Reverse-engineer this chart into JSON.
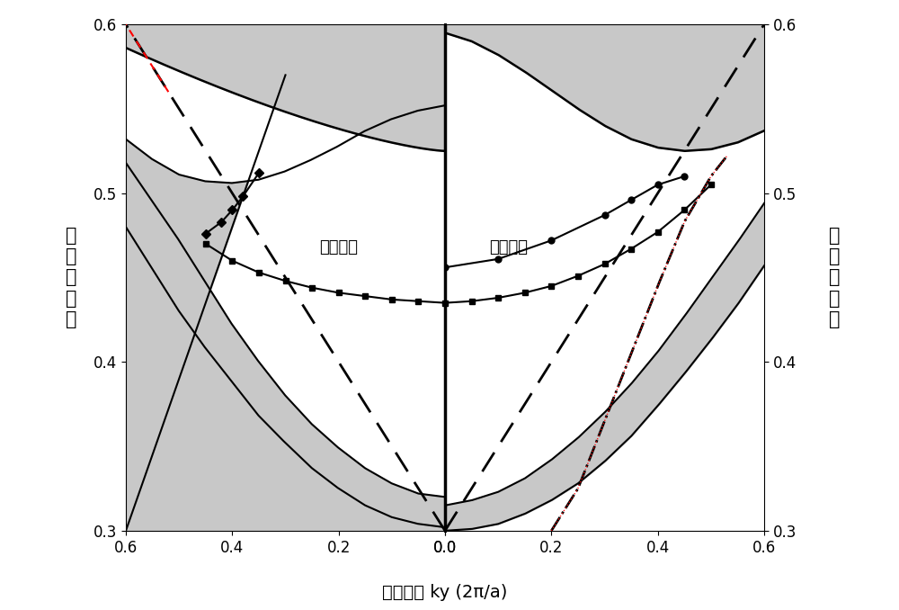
{
  "ylim": [
    0.3,
    0.6
  ],
  "gray_color": "#c8c8c8",
  "background_color": "#ffffff",
  "ylabel_left": "归\n一\n化\n频\n率",
  "ylabel_right": "归\n一\n化\n频\n率",
  "xlabel_cn": "平行波矢",
  "xlabel_en": " ky (2π/a)",
  "label_TM": "横向磁场",
  "label_TE": "横向电场",
  "TM_upper_band_at_k0": 0.525,
  "TM_upper_band_slope": 0.115,
  "TM_upper_band_exp": 1.6,
  "TM_lower_outer_k": [
    0.0,
    0.05,
    0.1,
    0.15,
    0.2,
    0.25,
    0.3,
    0.35,
    0.4,
    0.45,
    0.5,
    0.55,
    0.6
  ],
  "TM_lower_outer_f": [
    0.302,
    0.304,
    0.308,
    0.315,
    0.325,
    0.337,
    0.352,
    0.368,
    0.388,
    0.408,
    0.43,
    0.455,
    0.48
  ],
  "TM_inner_upper_k": [
    0.0,
    0.05,
    0.1,
    0.15,
    0.2,
    0.25,
    0.3,
    0.35,
    0.4,
    0.45,
    0.5,
    0.55,
    0.6
  ],
  "TM_inner_upper_f": [
    0.552,
    0.549,
    0.544,
    0.537,
    0.528,
    0.52,
    0.513,
    0.508,
    0.506,
    0.507,
    0.511,
    0.52,
    0.532
  ],
  "TM_inner_lower_k": [
    0.0,
    0.05,
    0.1,
    0.15,
    0.2,
    0.25,
    0.3,
    0.35,
    0.4,
    0.45,
    0.5,
    0.55,
    0.6
  ],
  "TM_inner_lower_f": [
    0.32,
    0.322,
    0.328,
    0.337,
    0.349,
    0.363,
    0.38,
    0.4,
    0.422,
    0.447,
    0.472,
    0.495,
    0.518
  ],
  "TM_sq_k": [
    0.0,
    0.05,
    0.1,
    0.15,
    0.2,
    0.25,
    0.3,
    0.35,
    0.4,
    0.45
  ],
  "TM_sq_f": [
    0.435,
    0.436,
    0.437,
    0.439,
    0.441,
    0.444,
    0.448,
    0.453,
    0.46,
    0.47
  ],
  "TM_di_k": [
    0.35,
    0.38,
    0.4,
    0.42,
    0.45
  ],
  "TM_di_f": [
    0.512,
    0.498,
    0.49,
    0.483,
    0.476
  ],
  "TE_upper_band_k": [
    0.0,
    0.05,
    0.1,
    0.15,
    0.2,
    0.25,
    0.3,
    0.35,
    0.4,
    0.45,
    0.5,
    0.55,
    0.6
  ],
  "TE_upper_band_f": [
    0.595,
    0.59,
    0.582,
    0.572,
    0.561,
    0.55,
    0.54,
    0.532,
    0.527,
    0.525,
    0.526,
    0.53,
    0.537
  ],
  "TE_lower_outer_k": [
    0.0,
    0.05,
    0.1,
    0.15,
    0.2,
    0.25,
    0.3,
    0.35,
    0.4,
    0.45,
    0.5,
    0.55,
    0.6
  ],
  "TE_lower_outer_f": [
    0.3,
    0.301,
    0.304,
    0.31,
    0.318,
    0.328,
    0.341,
    0.356,
    0.374,
    0.393,
    0.413,
    0.434,
    0.457
  ],
  "TE_lower_inner_k": [
    0.0,
    0.05,
    0.1,
    0.15,
    0.2,
    0.25,
    0.3,
    0.35,
    0.4,
    0.45,
    0.5,
    0.55,
    0.6
  ],
  "TE_lower_inner_f": [
    0.315,
    0.318,
    0.323,
    0.331,
    0.342,
    0.355,
    0.37,
    0.387,
    0.406,
    0.427,
    0.449,
    0.471,
    0.494
  ],
  "TE_sq_k": [
    0.0,
    0.05,
    0.1,
    0.15,
    0.2,
    0.25,
    0.3,
    0.35,
    0.4,
    0.45,
    0.5
  ],
  "TE_sq_f": [
    0.435,
    0.436,
    0.438,
    0.441,
    0.445,
    0.451,
    0.458,
    0.467,
    0.477,
    0.49,
    0.505
  ],
  "TE_ci_k": [
    0.0,
    0.1,
    0.2,
    0.3,
    0.35,
    0.4,
    0.45
  ],
  "TE_ci_f": [
    0.456,
    0.461,
    0.472,
    0.487,
    0.496,
    0.505,
    0.51
  ],
  "dashdot_k": [
    0.2,
    0.25,
    0.3,
    0.35,
    0.4,
    0.45,
    0.5,
    0.53
  ],
  "dashdot_f": [
    0.3,
    0.325,
    0.365,
    0.405,
    0.445,
    0.483,
    0.51,
    0.522
  ]
}
